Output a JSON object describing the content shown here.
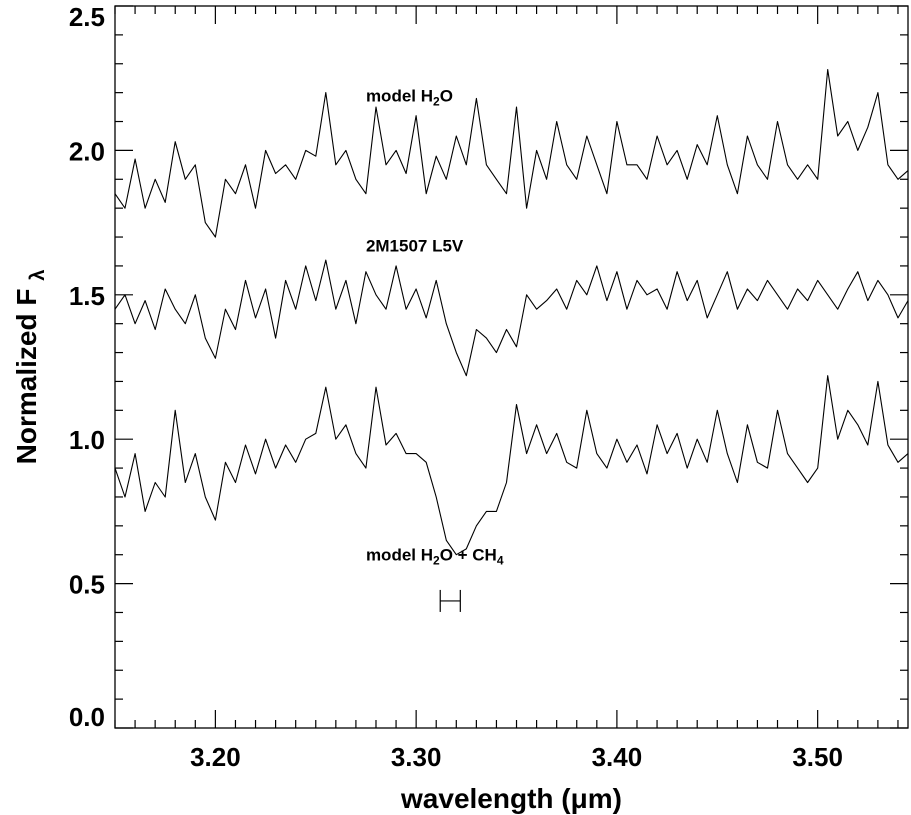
{
  "chart_data": {
    "type": "line",
    "xlabel": "wavelength (μm)",
    "ylabel": "Normalized F",
    "ylabel_subscript": "λ",
    "xlim": [
      3.15,
      3.545
    ],
    "ylim": [
      0.0,
      2.5
    ],
    "xticks": [
      {
        "value": 3.2,
        "label": "3.20"
      },
      {
        "value": 3.3,
        "label": "3.30"
      },
      {
        "value": 3.4,
        "label": "3.40"
      },
      {
        "value": 3.5,
        "label": "3.50"
      }
    ],
    "yticks": [
      {
        "value": 0.0,
        "label": "0.0"
      },
      {
        "value": 0.5,
        "label": "0.5"
      },
      {
        "value": 1.0,
        "label": "1.0"
      },
      {
        "value": 1.5,
        "label": "1.5"
      },
      {
        "value": 2.0,
        "label": "2.0"
      },
      {
        "value": 2.5,
        "label": "2.5"
      }
    ],
    "x_minor_step": 0.01,
    "y_minor_step": 0.1,
    "series": [
      {
        "name": "model H2O",
        "x": [
          3.15,
          3.155,
          3.16,
          3.165,
          3.17,
          3.175,
          3.18,
          3.185,
          3.19,
          3.195,
          3.2,
          3.205,
          3.21,
          3.215,
          3.22,
          3.225,
          3.23,
          3.235,
          3.24,
          3.245,
          3.25,
          3.255,
          3.26,
          3.265,
          3.27,
          3.275,
          3.28,
          3.285,
          3.29,
          3.295,
          3.3,
          3.305,
          3.31,
          3.315,
          3.32,
          3.325,
          3.33,
          3.335,
          3.34,
          3.345,
          3.35,
          3.355,
          3.36,
          3.365,
          3.37,
          3.375,
          3.38,
          3.385,
          3.39,
          3.395,
          3.4,
          3.405,
          3.41,
          3.415,
          3.42,
          3.425,
          3.43,
          3.435,
          3.44,
          3.445,
          3.45,
          3.455,
          3.46,
          3.465,
          3.47,
          3.475,
          3.48,
          3.485,
          3.49,
          3.495,
          3.5,
          3.505,
          3.51,
          3.515,
          3.52,
          3.525,
          3.53,
          3.535,
          3.54,
          3.545
        ],
        "y": [
          1.85,
          1.8,
          1.97,
          1.8,
          1.9,
          1.82,
          2.03,
          1.9,
          1.95,
          1.75,
          1.7,
          1.9,
          1.85,
          1.95,
          1.8,
          2.0,
          1.92,
          1.95,
          1.9,
          2.0,
          1.98,
          2.2,
          1.95,
          2.0,
          1.9,
          1.85,
          2.15,
          1.95,
          2.0,
          1.92,
          2.12,
          1.85,
          1.98,
          1.9,
          2.05,
          1.95,
          2.18,
          1.95,
          1.9,
          1.85,
          2.15,
          1.8,
          2.0,
          1.9,
          2.1,
          1.95,
          1.9,
          2.05,
          1.95,
          1.85,
          2.1,
          1.95,
          1.95,
          1.9,
          2.05,
          1.95,
          2.0,
          1.9,
          2.02,
          1.95,
          2.12,
          1.95,
          1.85,
          2.05,
          1.95,
          1.9,
          2.1,
          1.95,
          1.9,
          1.95,
          1.9,
          2.28,
          2.05,
          2.1,
          2.0,
          2.08,
          2.2,
          1.95,
          1.9,
          1.93
        ]
      },
      {
        "name": "2M1507 L5V",
        "x": [
          3.15,
          3.155,
          3.16,
          3.165,
          3.17,
          3.175,
          3.18,
          3.185,
          3.19,
          3.195,
          3.2,
          3.205,
          3.21,
          3.215,
          3.22,
          3.225,
          3.23,
          3.235,
          3.24,
          3.245,
          3.25,
          3.255,
          3.26,
          3.265,
          3.27,
          3.275,
          3.28,
          3.285,
          3.29,
          3.295,
          3.3,
          3.305,
          3.31,
          3.315,
          3.32,
          3.325,
          3.33,
          3.335,
          3.34,
          3.345,
          3.35,
          3.355,
          3.36,
          3.365,
          3.37,
          3.375,
          3.38,
          3.385,
          3.39,
          3.395,
          3.4,
          3.405,
          3.41,
          3.415,
          3.42,
          3.425,
          3.43,
          3.435,
          3.44,
          3.445,
          3.45,
          3.455,
          3.46,
          3.465,
          3.47,
          3.475,
          3.48,
          3.485,
          3.49,
          3.495,
          3.5,
          3.505,
          3.51,
          3.515,
          3.52,
          3.525,
          3.53,
          3.535,
          3.54,
          3.545
        ],
        "y": [
          1.45,
          1.5,
          1.4,
          1.48,
          1.38,
          1.52,
          1.45,
          1.4,
          1.5,
          1.35,
          1.28,
          1.45,
          1.38,
          1.55,
          1.42,
          1.52,
          1.35,
          1.55,
          1.45,
          1.6,
          1.48,
          1.62,
          1.45,
          1.55,
          1.4,
          1.58,
          1.5,
          1.45,
          1.6,
          1.45,
          1.52,
          1.42,
          1.55,
          1.4,
          1.3,
          1.22,
          1.38,
          1.35,
          1.3,
          1.38,
          1.32,
          1.5,
          1.45,
          1.48,
          1.52,
          1.45,
          1.55,
          1.5,
          1.6,
          1.48,
          1.58,
          1.45,
          1.55,
          1.5,
          1.52,
          1.45,
          1.58,
          1.48,
          1.55,
          1.42,
          1.5,
          1.58,
          1.45,
          1.52,
          1.48,
          1.55,
          1.5,
          1.45,
          1.52,
          1.48,
          1.55,
          1.5,
          1.45,
          1.52,
          1.58,
          1.48,
          1.55,
          1.5,
          1.42,
          1.48
        ]
      },
      {
        "name": "model H2O + CH4",
        "x": [
          3.15,
          3.155,
          3.16,
          3.165,
          3.17,
          3.175,
          3.18,
          3.185,
          3.19,
          3.195,
          3.2,
          3.205,
          3.21,
          3.215,
          3.22,
          3.225,
          3.23,
          3.235,
          3.24,
          3.245,
          3.25,
          3.255,
          3.26,
          3.265,
          3.27,
          3.275,
          3.28,
          3.285,
          3.29,
          3.295,
          3.3,
          3.305,
          3.31,
          3.315,
          3.32,
          3.325,
          3.33,
          3.335,
          3.34,
          3.345,
          3.35,
          3.355,
          3.36,
          3.365,
          3.37,
          3.375,
          3.38,
          3.385,
          3.39,
          3.395,
          3.4,
          3.405,
          3.41,
          3.415,
          3.42,
          3.425,
          3.43,
          3.435,
          3.44,
          3.445,
          3.45,
          3.455,
          3.46,
          3.465,
          3.47,
          3.475,
          3.48,
          3.485,
          3.49,
          3.495,
          3.5,
          3.505,
          3.51,
          3.515,
          3.52,
          3.525,
          3.53,
          3.535,
          3.54,
          3.545
        ],
        "y": [
          0.9,
          0.8,
          0.95,
          0.75,
          0.85,
          0.8,
          1.1,
          0.85,
          0.95,
          0.8,
          0.72,
          0.92,
          0.85,
          0.98,
          0.88,
          1.0,
          0.9,
          0.98,
          0.92,
          1.0,
          1.02,
          1.18,
          1.0,
          1.05,
          0.95,
          0.9,
          1.18,
          0.98,
          1.02,
          0.95,
          0.95,
          0.92,
          0.8,
          0.65,
          0.6,
          0.62,
          0.7,
          0.75,
          0.75,
          0.85,
          1.12,
          0.95,
          1.05,
          0.95,
          1.02,
          0.92,
          0.9,
          1.1,
          0.95,
          0.9,
          1.0,
          0.92,
          0.98,
          0.88,
          1.05,
          0.95,
          1.02,
          0.9,
          1.0,
          0.92,
          1.1,
          0.95,
          0.85,
          1.05,
          0.92,
          0.9,
          1.1,
          0.95,
          0.9,
          0.85,
          0.9,
          1.22,
          1.0,
          1.1,
          1.05,
          0.98,
          1.2,
          0.98,
          0.92,
          0.95
        ]
      }
    ],
    "annotations": [
      {
        "text": "model H",
        "sub": "2",
        "text2": "O",
        "x": 3.275,
        "y": 2.17
      },
      {
        "text": "2M1507  L5V",
        "x": 3.275,
        "y": 1.65
      },
      {
        "text": "model H",
        "sub": "2",
        "text2": "O + CH",
        "sub2": "4",
        "text3": "",
        "x": 3.275,
        "y": 0.58
      }
    ],
    "error_bar": {
      "x_low": 3.312,
      "x_high": 3.322,
      "y": 0.44
    },
    "line_color": "#000000",
    "grid": false
  }
}
